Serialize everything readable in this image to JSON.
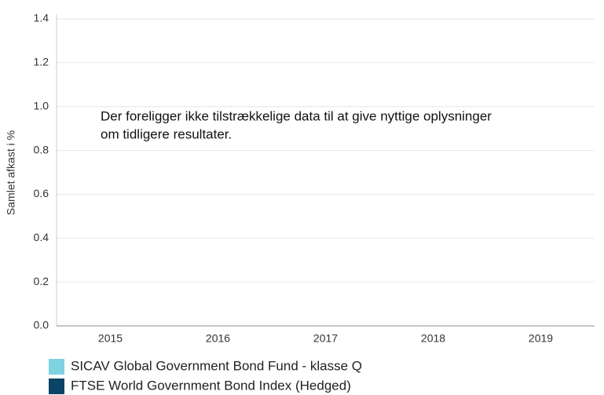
{
  "chart_data": {
    "type": "bar",
    "y_label": "Samlet afkast i %",
    "annotation": [
      "Der foreligger ikke tilstrækkelige data til at give nyttige oplysninger",
      "om tidligere resultater."
    ],
    "categories": [
      "2015",
      "2016",
      "2017",
      "2018",
      "2019"
    ],
    "series": [
      {
        "name": "SICAV Global Government Bond Fund - klasse Q",
        "color": "#7fd3e0",
        "values": [
          null,
          null,
          null,
          null,
          null
        ]
      },
      {
        "name": "FTSE World Government Bond Index (Hedged)",
        "color": "#0b4466",
        "values": [
          null,
          null,
          null,
          null,
          null
        ]
      }
    ],
    "ylim": [
      0,
      1.4
    ],
    "yticks": [
      {
        "value": 0,
        "label": "0.0"
      },
      0.2,
      0.4,
      0.6,
      0.8,
      {
        "value": 1,
        "label": "1.0"
      },
      1.2,
      1.4
    ],
    "grid": true
  }
}
